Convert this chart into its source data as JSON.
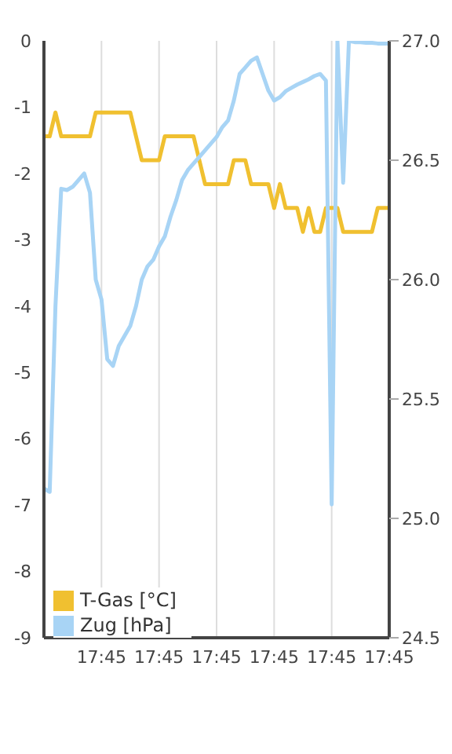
{
  "chart_data": {
    "type": "line",
    "categories": [
      null,
      null,
      null,
      null,
      null,
      null,
      null,
      null,
      null,
      null,
      "17:45",
      null,
      null,
      null,
      null,
      null,
      null,
      null,
      null,
      null,
      "17:45",
      null,
      null,
      null,
      null,
      null,
      null,
      null,
      null,
      null,
      "17:45",
      null,
      null,
      null,
      null,
      null,
      null,
      null,
      null,
      null,
      "17:45",
      null,
      null,
      null,
      null,
      null,
      null,
      null,
      null,
      null,
      "17:45",
      null,
      null,
      null,
      null,
      null,
      null,
      null,
      null,
      null,
      "17:45"
    ],
    "ylim": [
      -9,
      0
    ],
    "yticks": [
      0,
      -1,
      -2,
      -3,
      -4,
      -5,
      -6,
      -7,
      -8,
      -9
    ],
    "y2lim": [
      24.5,
      27.0
    ],
    "y2ticks": [
      {
        "value": 24.5,
        "label": "24.5"
      },
      {
        "value": 25,
        "label": "25.0"
      },
      {
        "value": 25.5,
        "label": "25.5"
      },
      {
        "value": 26,
        "label": "26.0"
      },
      {
        "value": 26.5,
        "label": "26.5"
      },
      {
        "value": 27,
        "label": "27.0"
      }
    ],
    "grid": true,
    "legend": "bottom left",
    "marker": "none",
    "line_style": "solid",
    "series": [
      {
        "name": "T-Gas [°C]",
        "color": "#f0c030",
        "axis": "y2",
        "values": [
          26.6,
          26.6,
          26.7,
          26.6,
          26.6,
          26.6,
          26.6,
          26.6,
          26.6,
          26.7,
          26.7,
          26.7,
          26.7,
          26.7,
          26.7,
          26.7,
          26.6,
          26.5,
          26.5,
          26.5,
          26.5,
          26.6,
          26.6,
          26.6,
          26.6,
          26.6,
          26.6,
          26.5,
          26.4,
          26.4,
          26.4,
          26.4,
          26.4,
          26.5,
          26.5,
          26.5,
          26.4,
          26.4,
          26.4,
          26.4,
          26.3,
          26.4,
          26.3,
          26.3,
          26.3,
          26.2,
          26.3,
          26.2,
          26.2,
          26.3,
          26.3,
          26.3,
          26.2,
          26.2,
          26.2,
          26.2,
          26.2,
          26.2,
          26.3,
          26.3,
          26.3
        ]
      },
      {
        "name": "Zug [hPa]",
        "color": "#a8d4f5",
        "values": [
          -6.75,
          -6.8,
          -4.0,
          -2.23,
          -2.25,
          -2.2,
          -2.1,
          -2.0,
          -2.29,
          -3.6,
          -3.9,
          -4.8,
          -4.9,
          -4.6,
          -4.45,
          -4.3,
          -4.0,
          -3.6,
          -3.4,
          -3.3,
          -3.1,
          -2.95,
          -2.65,
          -2.4,
          -2.1,
          -1.95,
          -1.85,
          -1.75,
          -1.65,
          -1.55,
          -1.45,
          -1.3,
          -1.2,
          -0.9,
          -0.5,
          -0.4,
          -0.3,
          -0.25,
          -0.5,
          -0.75,
          -0.9,
          -0.85,
          -0.76,
          -0.71,
          -0.66,
          -0.62,
          -0.58,
          -0.53,
          -0.5,
          -0.6,
          -6.99,
          0,
          -2.14,
          0,
          -0.02,
          -0.02,
          -0.03,
          -0.03,
          -0.04,
          -0.04,
          -0.04
        ]
      }
    ]
  }
}
